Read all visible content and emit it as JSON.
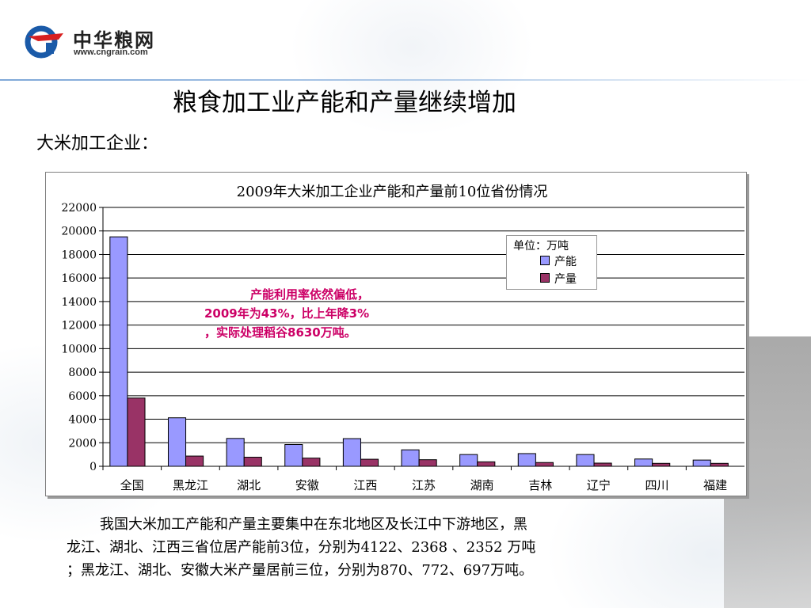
{
  "logo": {
    "name": "中华粮网",
    "url": "www.cngrain.com"
  },
  "title": "粮食加工业产能和产量继续增加",
  "subtitle": "大米加工企业：",
  "colors": {
    "capacity": "#9999ff",
    "output": "#993366",
    "annotation": "#cc0066"
  },
  "chart_data": {
    "type": "bar",
    "title": "2009年大米加工企业产能和产量前10位省份情况",
    "unit_label": "单位：万吨",
    "categories": [
      "全国",
      "黑龙江",
      "湖北",
      "安徽",
      "江西",
      "江苏",
      "湖南",
      "吉林",
      "辽宁",
      "四川",
      "福建"
    ],
    "series": [
      {
        "name": "产能",
        "values": [
          19500,
          4122,
          2368,
          1850,
          2352,
          1400,
          1000,
          1080,
          1000,
          620,
          530
        ]
      },
      {
        "name": "产量",
        "values": [
          5800,
          870,
          772,
          697,
          600,
          560,
          380,
          320,
          270,
          250,
          250
        ]
      }
    ],
    "ylim": [
      0,
      22000
    ],
    "yticks": [
      0,
      2000,
      4000,
      6000,
      8000,
      10000,
      12000,
      14000,
      16000,
      18000,
      20000,
      22000
    ],
    "grid": true,
    "legend_position": "top-right"
  },
  "annotation": {
    "line1": "产能利用率依然偏低，",
    "line2": "2009年为43%，比上年降3%",
    "line3": "，实际处理稻谷8630万吨。"
  },
  "summary": {
    "line1": "我国大米加工产能和产量主要集中在东北地区及长江中下游地区，黑",
    "line2": "龙江、湖北、江西三省位居产能前3位，分别为4122、2368 、2352 万吨",
    "line3": "；黑龙江、湖北、安徽大米产量居前三位，分别为870、772、697万吨。"
  }
}
